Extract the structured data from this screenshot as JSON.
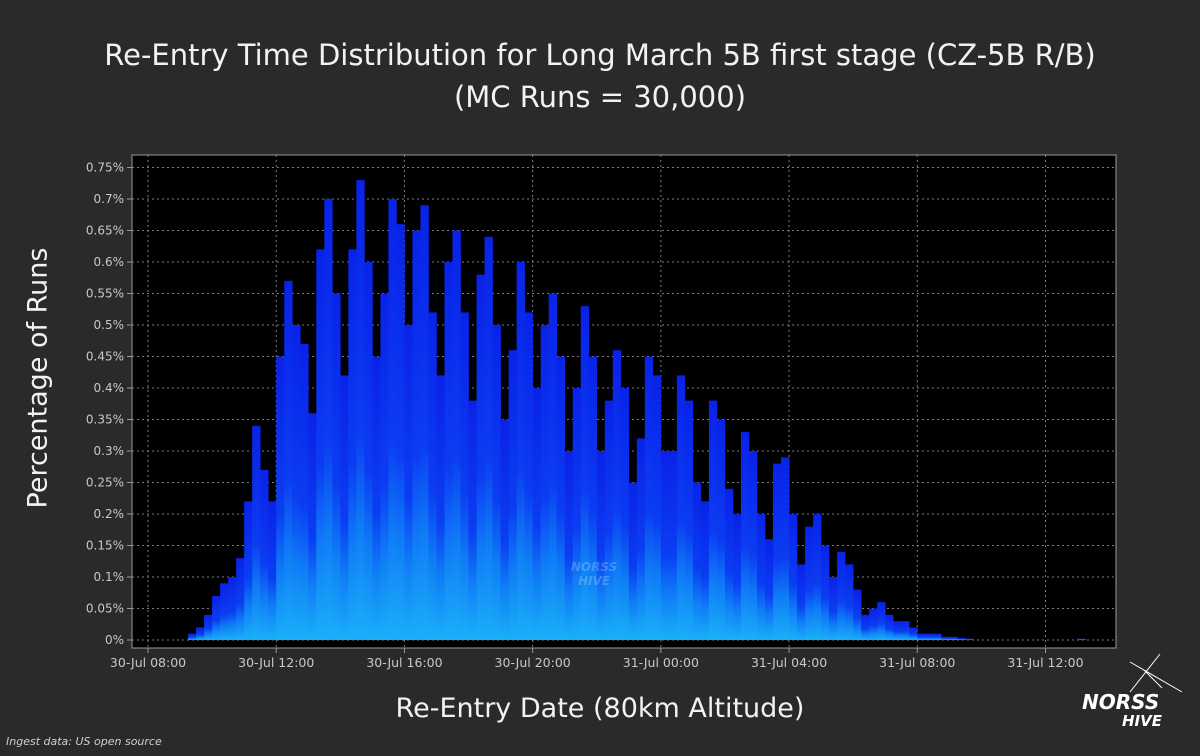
{
  "title_line1": "Re-Entry Time Distribution for Long March 5B first stage (CZ-5B R/B)",
  "title_line2": "(MC Runs = 30,000)",
  "source_note": "Ingest data: US open source",
  "logo": {
    "line1": "NORSS",
    "line2": "HIVE",
    "icon": "crossed-lines-hex-logo"
  },
  "watermark": {
    "line1": "NORSS",
    "line2": "HIVE"
  },
  "colors": {
    "background": "#2b2a2b",
    "plot_bg": "#000000",
    "bar_top": "#0a2ef0",
    "bar_bottom": "#1aa6f5",
    "grid": "#8a8a8a"
  },
  "chart_data": {
    "type": "area",
    "title": "Re-Entry Time Distribution for Long March 5B first stage (CZ-5B R/B) (MC Runs = 30,000)",
    "xlabel": "Re-Entry Date (80km Altitude)",
    "ylabel": "Percentage of Runs",
    "x_ticks": [
      "30-Jul 08:00",
      "30-Jul 12:00",
      "30-Jul 16:00",
      "30-Jul 20:00",
      "31-Jul 00:00",
      "31-Jul 04:00",
      "31-Jul 08:00",
      "31-Jul 12:00"
    ],
    "y_ticks": [
      "0%",
      "0.05%",
      "0.1%",
      "0.15%",
      "0.2%",
      "0.25%",
      "0.3%",
      "0.35%",
      "0.4%",
      "0.45%",
      "0.5%",
      "0.55%",
      "0.6%",
      "0.65%",
      "0.7%",
      "0.75%"
    ],
    "x_unit": "hours since 30-Jul 00:00",
    "xlim": [
      7.5,
      38.2
    ],
    "ylim": [
      0,
      0.76
    ],
    "grid": true,
    "series": [
      {
        "x": [
          9.25,
          9.5,
          9.75,
          10.0,
          10.25,
          10.5,
          10.75,
          11.0,
          11.25,
          11.5,
          11.75,
          12.0,
          12.25,
          12.5,
          12.75,
          13.0,
          13.25,
          13.5,
          13.75,
          14.0,
          14.25,
          14.5,
          14.75,
          15.0,
          15.25,
          15.5,
          15.75,
          16.0,
          16.25,
          16.5,
          16.75,
          17.0,
          17.25,
          17.5,
          17.75,
          18.0,
          18.25,
          18.5,
          18.75,
          19.0,
          19.25,
          19.5,
          19.75,
          20.0,
          20.25,
          20.5,
          20.75,
          21.0,
          21.25,
          21.5,
          21.75,
          22.0,
          22.25,
          22.5,
          22.75,
          23.0,
          23.25,
          23.5,
          23.75,
          24.0,
          24.25,
          24.5,
          24.75,
          25.0,
          25.25,
          25.5,
          25.75,
          26.0,
          26.25,
          26.5,
          26.75,
          27.0,
          27.25,
          27.5,
          27.75,
          28.0,
          28.25,
          28.5,
          28.75,
          29.0,
          29.25,
          29.5,
          29.75,
          30.0,
          30.25,
          30.5,
          30.75,
          31.0,
          31.25,
          31.5,
          31.75,
          32.0,
          32.25,
          32.5,
          32.75,
          33.0,
          33.25,
          33.5,
          33.75,
          34.0,
          34.25,
          34.5,
          34.75,
          35.0,
          35.25,
          35.5,
          35.75,
          36.0,
          36.25,
          36.5,
          36.75,
          37.0
        ],
        "values": [
          0.01,
          0.02,
          0.04,
          0.07,
          0.09,
          0.1,
          0.13,
          0.22,
          0.34,
          0.27,
          0.22,
          0.45,
          0.57,
          0.5,
          0.47,
          0.36,
          0.62,
          0.7,
          0.55,
          0.42,
          0.62,
          0.73,
          0.6,
          0.45,
          0.55,
          0.7,
          0.66,
          0.5,
          0.65,
          0.69,
          0.52,
          0.42,
          0.6,
          0.65,
          0.52,
          0.38,
          0.58,
          0.64,
          0.5,
          0.35,
          0.46,
          0.6,
          0.52,
          0.4,
          0.5,
          0.55,
          0.45,
          0.3,
          0.4,
          0.53,
          0.45,
          0.3,
          0.38,
          0.46,
          0.4,
          0.25,
          0.32,
          0.45,
          0.42,
          0.3,
          0.3,
          0.42,
          0.38,
          0.25,
          0.22,
          0.38,
          0.35,
          0.24,
          0.2,
          0.33,
          0.3,
          0.2,
          0.16,
          0.28,
          0.29,
          0.2,
          0.12,
          0.18,
          0.2,
          0.15,
          0.1,
          0.14,
          0.12,
          0.08,
          0.04,
          0.05,
          0.06,
          0.04,
          0.03,
          0.03,
          0.02,
          0.01,
          0.01,
          0.01,
          0.005,
          0.005,
          0.003,
          0.002,
          0.0,
          0.0,
          0.0,
          0.0,
          0.0,
          0.0,
          0.0,
          0.0,
          0.0,
          0.0,
          0.0,
          0.0,
          0.0,
          0.002
        ]
      }
    ]
  }
}
